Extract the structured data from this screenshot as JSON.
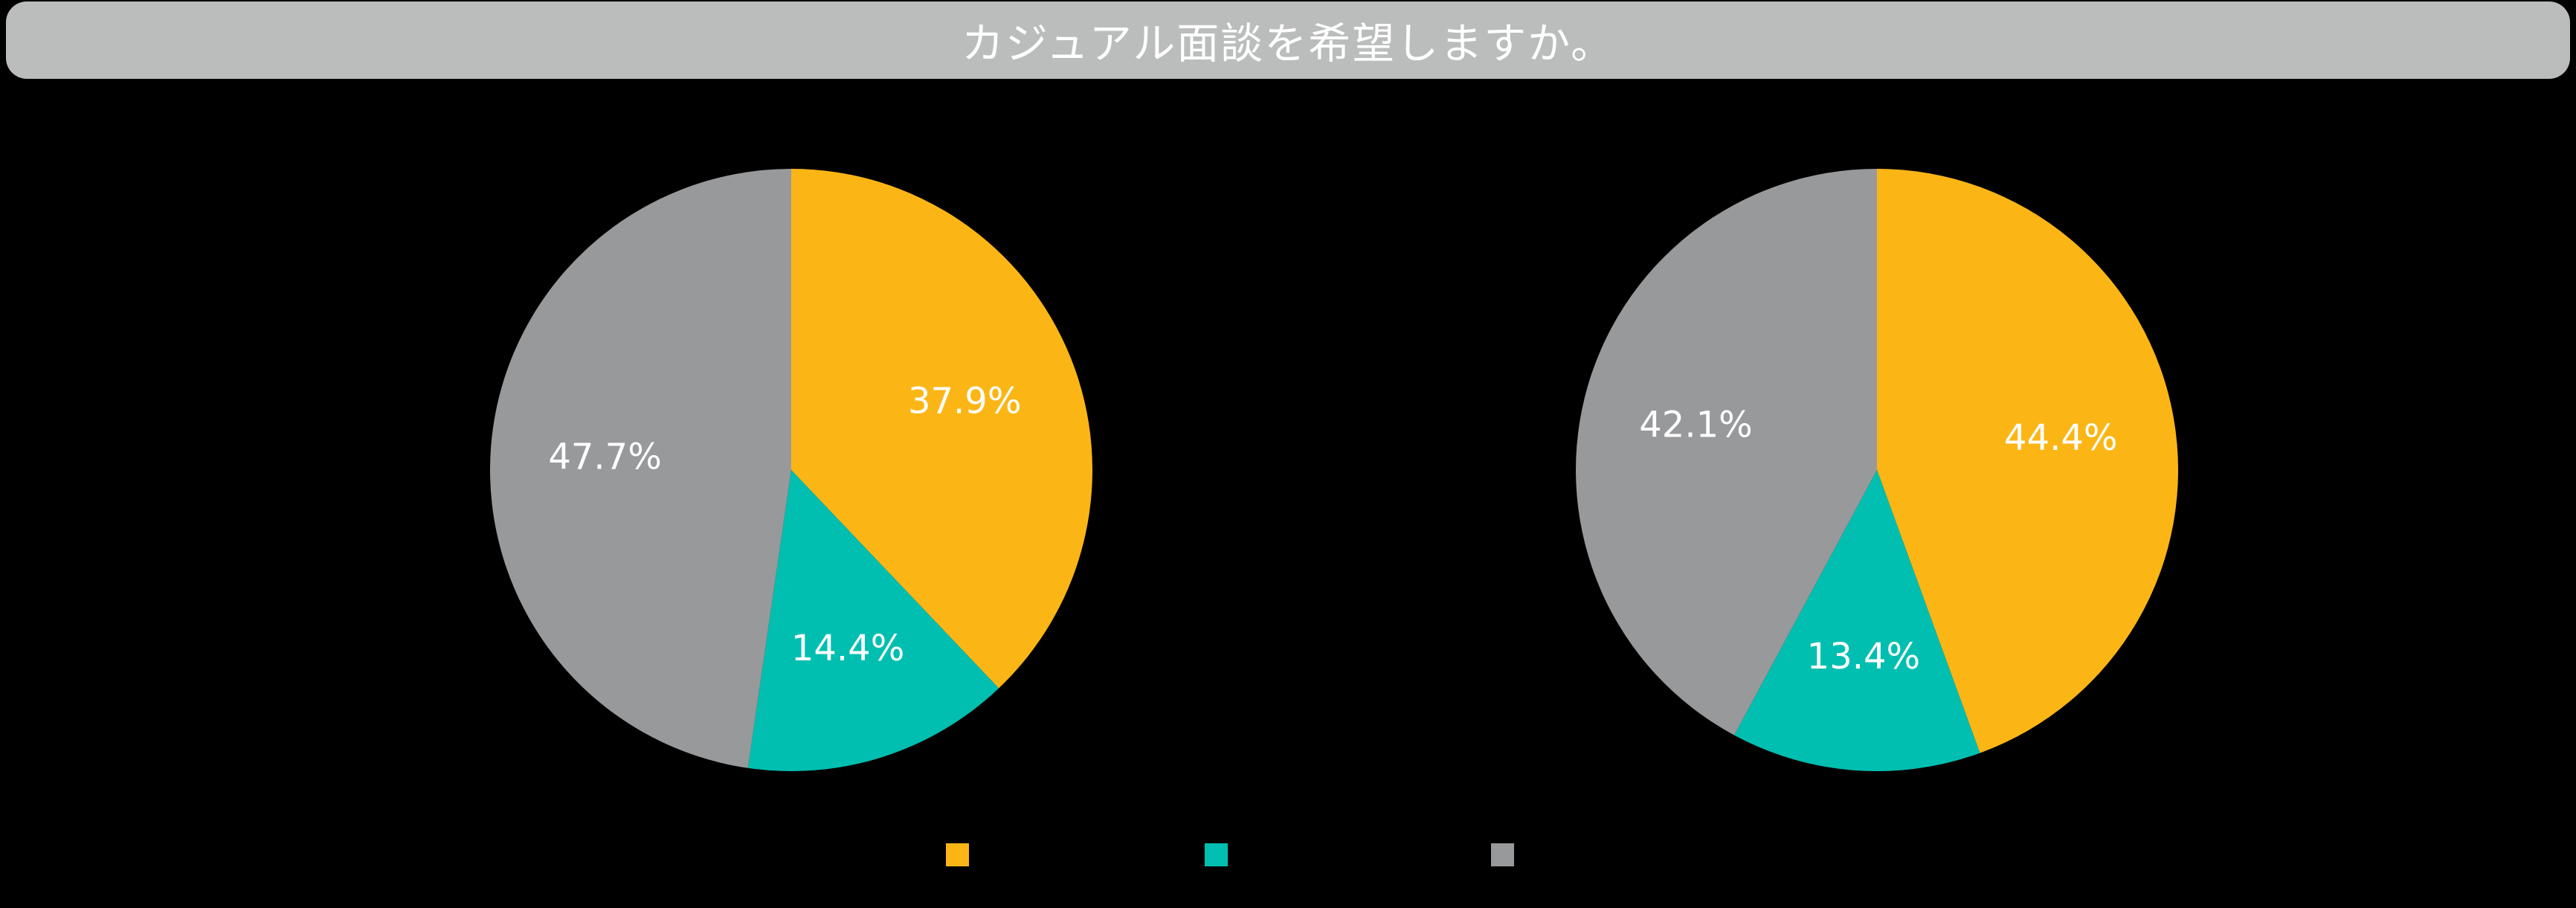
{
  "page": {
    "background_color": "#000000"
  },
  "header": {
    "title": "カジュアル面談を希望しますか。",
    "banner_color": "#BBBDBD",
    "title_text_color": "#FFFFFF"
  },
  "chart_data": [
    {
      "type": "pie",
      "position": "left",
      "values": [
        37.9,
        14.4,
        47.7
      ],
      "slice_labels": [
        "37.9%",
        "14.4%",
        "47.7%"
      ],
      "colors": [
        "#FBB616",
        "#00BFB0",
        "#98999B"
      ],
      "start_angle": "12-oclock",
      "direction": "clockwise",
      "label_color": "#FFFFFF"
    },
    {
      "type": "pie",
      "position": "right",
      "values": [
        44.4,
        13.4,
        42.1
      ],
      "slice_labels": [
        "44.4%",
        "13.4%",
        "42.1%"
      ],
      "colors": [
        "#FBB616",
        "#00BFB0",
        "#98999B"
      ],
      "start_angle": "12-oclock",
      "direction": "clockwise",
      "label_color": "#FFFFFF"
    }
  ],
  "legend": {
    "position": "bottom-center",
    "items": [
      {
        "color": "#FBB616",
        "label": ""
      },
      {
        "color": "#00BFB0",
        "label": ""
      },
      {
        "color": "#98999B",
        "label": ""
      }
    ]
  }
}
